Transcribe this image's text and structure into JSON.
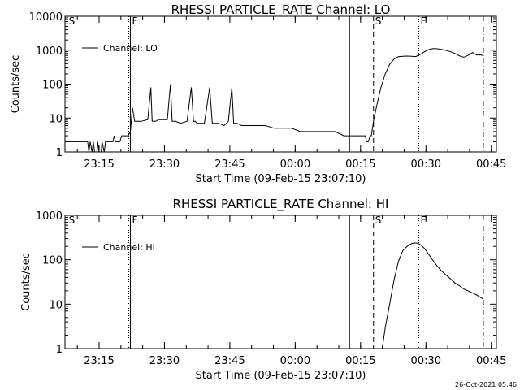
{
  "timestamp": "26-Oct-2021 05:46",
  "colors": {
    "background": "#ffffff",
    "foreground": "#000000"
  },
  "chart_data": [
    {
      "type": "line",
      "title": "RHESSI PARTICLE_RATE Channel: LO",
      "xlabel": "Start Time (09-Feb-15 23:07:10)",
      "ylabel": "Counts/sec",
      "yscale": "log",
      "ylim": [
        1,
        10000
      ],
      "y_ticks": [
        1,
        10,
        100,
        1000,
        10000
      ],
      "y_tick_labels": [
        "1",
        "10",
        "100",
        "1000",
        "10000"
      ],
      "xlim_minutes_from_23_07_10": [
        0,
        99
      ],
      "x_ticks_minutes": [
        7.83,
        22.83,
        37.83,
        52.83,
        67.83,
        82.83,
        97.83
      ],
      "x_tick_labels": [
        "23:15",
        "23:30",
        "23:45",
        "00:00",
        "00:15",
        "00:30",
        "00:45"
      ],
      "legend": {
        "label": "Channel: LO",
        "position": "top-left"
      },
      "markers": [
        {
          "label": "S",
          "t_min": 0.5,
          "style": "none"
        },
        {
          "label": "F",
          "t_min": 15.0,
          "style": "dotted+solid"
        },
        {
          "label": "",
          "t_min": 65.3,
          "style": "solid"
        },
        {
          "label": "S",
          "t_min": 70.8,
          "style": "dashed"
        },
        {
          "label": "E",
          "t_min": 81.2,
          "style": "dotted"
        },
        {
          "label": "",
          "t_min": 96.0,
          "style": "dashdot"
        }
      ],
      "series": [
        {
          "x": [
            0,
            2,
            4,
            5.2,
            5.5,
            5.8,
            6.2,
            6.5,
            6.8,
            7.3,
            7.5,
            7.8,
            8.3,
            8.5,
            9.0,
            9.3,
            10.5,
            11.0,
            11.3,
            11.6,
            12.3,
            12.6,
            13.0,
            13.7,
            14.5,
            15.0,
            15.5,
            16,
            17.5,
            19,
            19.7,
            20.0,
            20.4,
            20.8,
            21.5,
            22.5,
            23.5,
            24.2,
            24.6,
            25.0,
            25.4,
            26.5,
            28.0,
            29.0,
            29.5,
            29.9,
            30.3,
            31,
            32,
            33.2,
            33.8,
            34.2,
            34.6,
            35.3,
            36.5,
            37.5,
            38.3,
            38.7,
            39.1,
            39.5,
            40.5,
            42,
            44,
            46,
            48,
            50,
            52,
            54,
            56,
            58,
            60,
            62,
            64,
            65,
            66,
            67,
            68,
            68.9,
            69.2,
            69.6,
            70.0,
            70.3,
            70.8,
            71.6,
            72.5,
            73.5,
            74.5,
            75.5,
            76.5,
            77.5,
            78.5,
            79.5,
            80.5,
            81.5,
            82.5,
            83.5,
            84.5,
            85.5,
            86.5,
            87.5,
            88.5,
            89.5,
            90.5,
            91.5,
            92.5,
            93.5,
            94.5,
            95.2,
            96.0
          ],
          "y": [
            2,
            2,
            2,
            2,
            1,
            2,
            1,
            2,
            1,
            1,
            2,
            1,
            1,
            2,
            1,
            2,
            2,
            2,
            3,
            2,
            2,
            2,
            3,
            3,
            3,
            4,
            20,
            8,
            8,
            9,
            80,
            8,
            8,
            8,
            9,
            9,
            9,
            100,
            8,
            8,
            8,
            7,
            8,
            80,
            8,
            8,
            7,
            7,
            7,
            80,
            7,
            7,
            7,
            7,
            6,
            8,
            80,
            7,
            7,
            7,
            6,
            6,
            6,
            6,
            5,
            5,
            5,
            4,
            4,
            4,
            4,
            4,
            3,
            3,
            3,
            3,
            3,
            3,
            2,
            2,
            3,
            3,
            8,
            25,
            80,
            200,
            380,
            550,
            640,
            660,
            670,
            660,
            650,
            750,
            900,
            1050,
            1120,
            1100,
            1050,
            980,
            900,
            800,
            680,
            620,
            700,
            850,
            720,
            730,
            700
          ]
        }
      ]
    },
    {
      "type": "line",
      "title": "RHESSI PARTICLE_RATE Channel: HI",
      "xlabel": "Start Time (09-Feb-15 23:07:10)",
      "ylabel": "Counts/sec",
      "yscale": "log",
      "ylim": [
        1,
        1000
      ],
      "y_ticks": [
        1,
        10,
        100,
        1000
      ],
      "y_tick_labels": [
        "1",
        "10",
        "100",
        "1000"
      ],
      "xlim_minutes_from_23_07_10": [
        0,
        99
      ],
      "x_ticks_minutes": [
        7.83,
        22.83,
        37.83,
        52.83,
        67.83,
        82.83,
        97.83
      ],
      "x_tick_labels": [
        "23:15",
        "23:30",
        "23:45",
        "00:00",
        "00:15",
        "00:30",
        "00:45"
      ],
      "legend": {
        "label": "Channel: HI",
        "position": "top-left"
      },
      "markers": [
        {
          "label": "S",
          "t_min": 0.5,
          "style": "none"
        },
        {
          "label": "F",
          "t_min": 15.0,
          "style": "dotted+solid"
        },
        {
          "label": "",
          "t_min": 65.3,
          "style": "solid"
        },
        {
          "label": "S",
          "t_min": 70.8,
          "style": "dashed"
        },
        {
          "label": "E",
          "t_min": 81.2,
          "style": "dotted"
        },
        {
          "label": "",
          "t_min": 96.0,
          "style": "dashdot"
        }
      ],
      "series": [
        {
          "x": [
            72.8,
            73.5,
            74.5,
            75.5,
            76.5,
            77.5,
            78.5,
            79.5,
            80.2,
            81.0,
            81.8,
            82.5,
            83.5,
            84.5,
            85.5,
            86.5,
            87.5,
            88.5,
            89.5,
            90.5,
            91.5,
            92.5,
            93.5,
            94.5,
            95.5,
            96.0
          ],
          "y": [
            1,
            3,
            10,
            35,
            90,
            160,
            200,
            230,
            240,
            235,
            210,
            180,
            130,
            95,
            70,
            55,
            45,
            37,
            30,
            26,
            22,
            20,
            18,
            16,
            14,
            13
          ]
        }
      ]
    }
  ]
}
